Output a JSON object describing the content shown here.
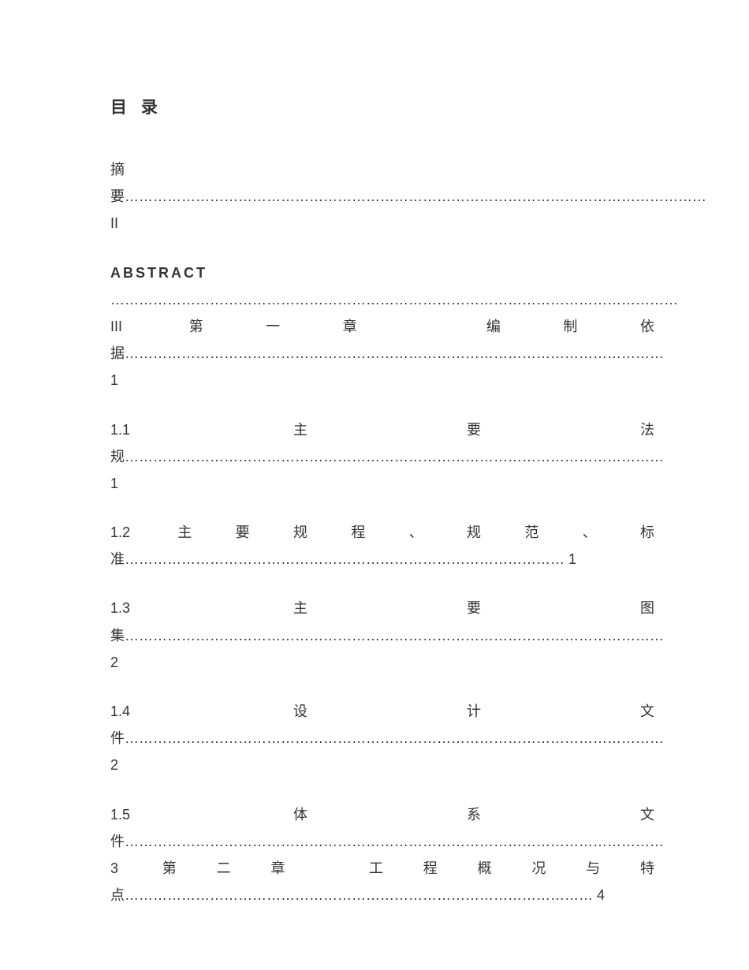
{
  "title": "目 录",
  "entries": [
    {
      "text": "摘要……………………………………………………………………………………………………………II"
    },
    {
      "prefix_bold": "ABSTRACT",
      "text": " ………………………………………………………………………………………………………… III 第一章 编制依据…………………………………………………………………………………………………… 1"
    },
    {
      "text": "1.1 主要法规…………………………………………………………………………………………………… 1"
    },
    {
      "text": "1.2 主要规程、规范、标准………………………………………………………………………………… 1"
    },
    {
      "text": "1.3 主要图集…………………………………………………………………………………………………… 2"
    },
    {
      "text": "1.4 设计文件…………………………………………………………………………………………………… 2"
    },
    {
      "text": "1.5 体系文件…………………………………………………………………………………………………… 3 第二章 工程概况与特点……………………………………………………………………………………… 4"
    }
  ],
  "colors": {
    "text": "#333333",
    "background": "#ffffff"
  },
  "typography": {
    "title_fontsize": 21,
    "entry_fontsize": 18,
    "line_height": 1.9,
    "font_family": "Microsoft YaHei"
  }
}
